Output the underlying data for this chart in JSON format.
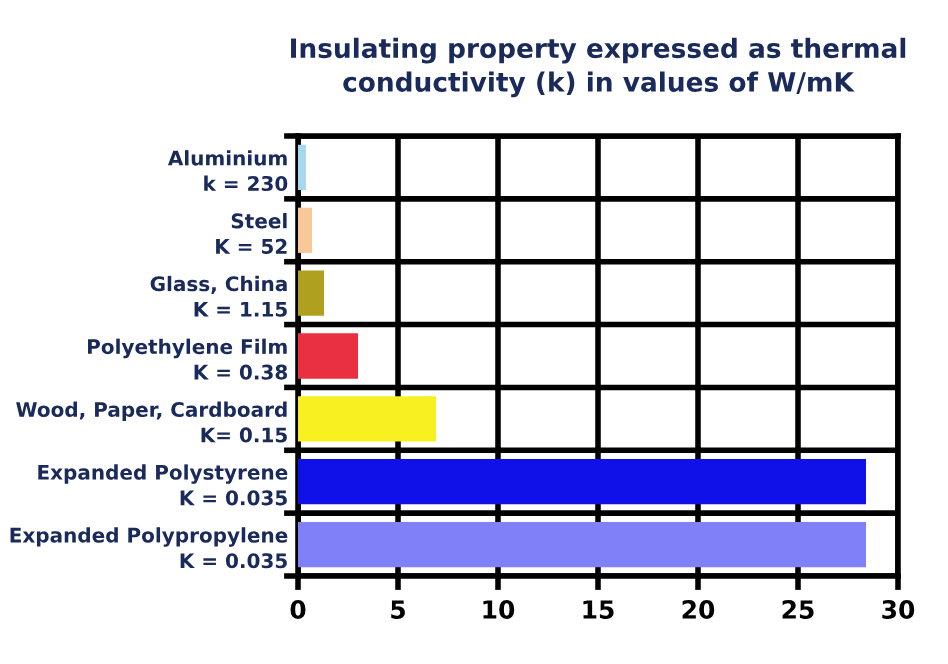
{
  "chart_data": {
    "type": "bar",
    "orientation": "horizontal",
    "title": "Insulating property expressed as thermal\nconductivity (k) in values of W/mK",
    "categories": [
      "Aluminium\nk = 230",
      "Steel\nK = 52",
      "Glass, China\nK = 1.15",
      "Polyethylene Film\nK = 0.38",
      "Wood, Paper, Cardboard\nK= 0.15",
      "Expanded Polystyrene\nK = 0.035",
      "Expanded Polypropylene\nK = 0.035"
    ],
    "values": [
      0.4,
      0.7,
      1.3,
      3.0,
      6.9,
      28.4,
      28.4
    ],
    "colors": [
      "#a8d8f0",
      "#f8c898",
      "#b0a020",
      "#e83040",
      "#f8f020",
      "#1010e8",
      "#8080f8"
    ],
    "xlim": [
      0,
      30
    ],
    "xticks": [
      0,
      5,
      10,
      15,
      20,
      25,
      30
    ],
    "grid": true
  }
}
